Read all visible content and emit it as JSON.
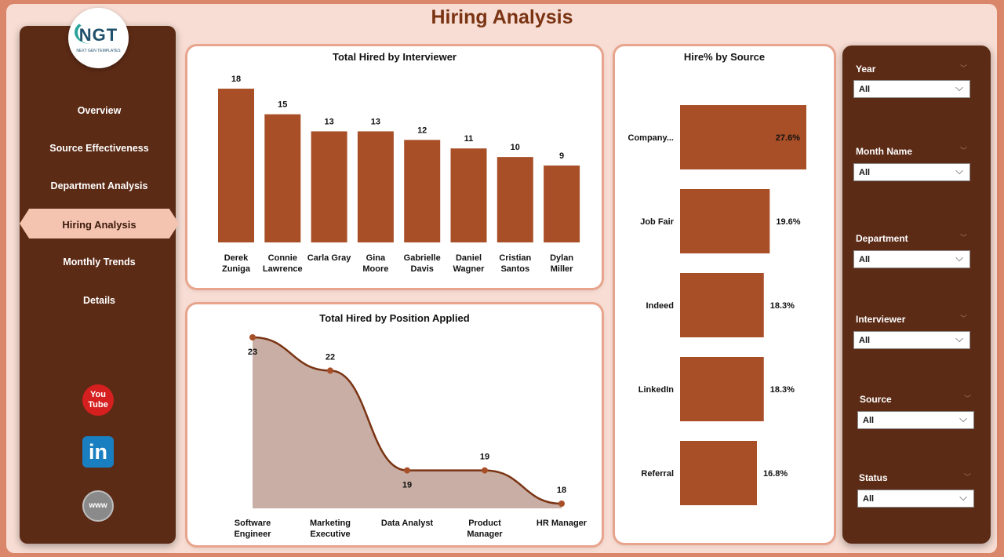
{
  "page": {
    "title": "Hiring Analysis"
  },
  "logo": {
    "text": "NGT",
    "subtitle": "NEXT GEN TEMPLATES"
  },
  "nav": {
    "items": [
      "Overview",
      "Source Effectiveness",
      "Department Analysis",
      "Hiring Analysis",
      "Monthly Trends",
      "Details"
    ],
    "active": "Hiring Analysis"
  },
  "social": {
    "youtube_label": "You Tube",
    "linkedin_label": "in",
    "web_label": "www"
  },
  "chart_data": [
    {
      "type": "bar",
      "title": "Total Hired by Interviewer",
      "categories": [
        "Derek Zuniga",
        "Connie Lawrence",
        "Carla Gray",
        "Gina Moore",
        "Gabrielle Davis",
        "Daniel Wagner",
        "Cristian Santos",
        "Dylan Miller"
      ],
      "values": [
        18,
        15,
        13,
        13,
        12,
        11,
        10,
        9
      ],
      "xlabel": "",
      "ylabel": "",
      "ylim": [
        0,
        18
      ],
      "color": "#a84f28"
    },
    {
      "type": "area",
      "title": "Total Hired by Position Applied",
      "categories": [
        "Software Engineer",
        "Marketing Executive",
        "Data Analyst",
        "Product Manager",
        "HR Manager"
      ],
      "values": [
        23,
        22,
        19,
        19,
        18
      ],
      "xlabel": "",
      "ylabel": "",
      "line_color": "#7a3414",
      "fill_color": "#c8aea4"
    },
    {
      "type": "bar",
      "orientation": "horizontal",
      "title": "Hire% by Source",
      "categories": [
        "Company...",
        "Job Fair",
        "Indeed",
        "LinkedIn",
        "Referral"
      ],
      "values": [
        27.6,
        19.6,
        18.3,
        18.3,
        16.8
      ],
      "value_labels": [
        "27.6%",
        "19.6%",
        "18.3%",
        "18.3%",
        "16.8%"
      ],
      "xlabel": "",
      "ylabel": "",
      "color": "#a84f28"
    }
  ],
  "filters": [
    {
      "label": "Year",
      "value": "All"
    },
    {
      "label": "Month Name",
      "value": "All"
    },
    {
      "label": "Department",
      "value": "All"
    },
    {
      "label": "Interviewer",
      "value": "All"
    },
    {
      "label": "Source",
      "value": "All"
    },
    {
      "label": "Status",
      "value": "All"
    }
  ],
  "icons": {
    "dropdown": "chevron-down-icon"
  }
}
